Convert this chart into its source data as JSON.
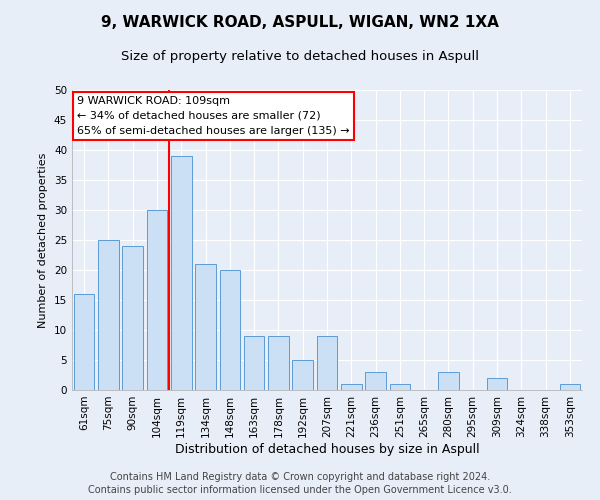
{
  "title": "9, WARWICK ROAD, ASPULL, WIGAN, WN2 1XA",
  "subtitle": "Size of property relative to detached houses in Aspull",
  "xlabel": "Distribution of detached houses by size in Aspull",
  "ylabel": "Number of detached properties",
  "categories": [
    "61sqm",
    "75sqm",
    "90sqm",
    "104sqm",
    "119sqm",
    "134sqm",
    "148sqm",
    "163sqm",
    "178sqm",
    "192sqm",
    "207sqm",
    "221sqm",
    "236sqm",
    "251sqm",
    "265sqm",
    "280sqm",
    "295sqm",
    "309sqm",
    "324sqm",
    "338sqm",
    "353sqm"
  ],
  "values": [
    16,
    25,
    24,
    30,
    39,
    21,
    20,
    9,
    9,
    5,
    9,
    1,
    3,
    1,
    0,
    3,
    0,
    2,
    0,
    0,
    1
  ],
  "bar_color": "#cce0f5",
  "bar_edge_color": "#5b9bd5",
  "property_line_x": 3.5,
  "annotation_text": "9 WARWICK ROAD: 109sqm\n← 34% of detached houses are smaller (72)\n65% of semi-detached houses are larger (135) →",
  "annotation_box_color": "white",
  "annotation_box_edge": "red",
  "ylim": [
    0,
    50
  ],
  "yticks": [
    0,
    5,
    10,
    15,
    20,
    25,
    30,
    35,
    40,
    45,
    50
  ],
  "footer_line1": "Contains HM Land Registry data © Crown copyright and database right 2024.",
  "footer_line2": "Contains public sector information licensed under the Open Government Licence v3.0.",
  "bg_color": "#e8eef8",
  "plot_bg_color": "#e8eef8",
  "grid_color": "white",
  "title_fontsize": 11,
  "subtitle_fontsize": 9.5,
  "xlabel_fontsize": 9,
  "ylabel_fontsize": 8,
  "tick_fontsize": 7.5,
  "footer_fontsize": 7,
  "ann_fontsize": 8
}
